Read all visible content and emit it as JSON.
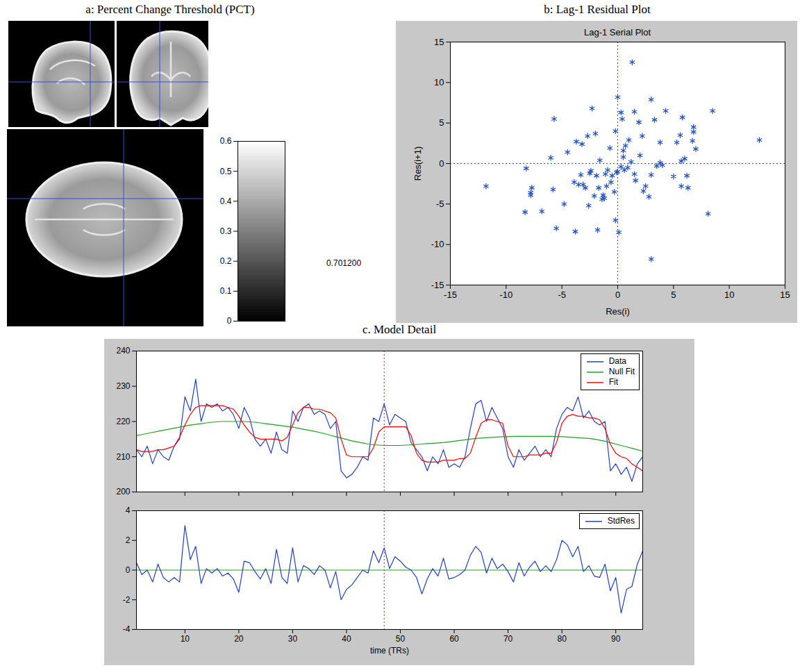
{
  "chart_data": [
    {
      "type": "image",
      "title": "a: Percent Change Threshold (PCT)",
      "colorbar": {
        "range": [
          0,
          0.6
        ],
        "ticks": [
          0,
          0.1,
          0.2,
          0.3,
          0.4,
          0.5,
          0.6
        ],
        "colors": [
          "#000000",
          "#ffffff"
        ]
      },
      "annotations": [
        "0.701200"
      ]
    },
    {
      "type": "scatter",
      "title": "b: Lag-1 Residual Plot",
      "subtitle": "Lag-1 Serial Plot",
      "x_label": "Res(i)",
      "y_label": "Res(i+1)",
      "x": [
        -11.8,
        -8.2,
        -8.3,
        -7.8,
        -7.7,
        -7.8,
        -6.8,
        -6,
        -5.7,
        -5.8,
        -5.5,
        -4.8,
        -4.5,
        -3.8,
        -3.7,
        -3.9,
        -3.5,
        -3.3,
        -3.1,
        -3.2,
        -2.9,
        -2.7,
        -2.5,
        -2.3,
        -2.4,
        -2,
        -2.1,
        -1.9,
        -1.8,
        -1.7,
        -1.6,
        -1.4,
        -1.3,
        -1.2,
        -1.1,
        -1,
        -0.9,
        -0.7,
        -0.6,
        -0.5,
        -0.3,
        -0.2,
        -0.1,
        -0.2,
        0,
        0.1,
        0,
        0.3,
        0.3,
        0.4,
        0.5,
        0.6,
        0.7,
        0.9,
        1,
        1.2,
        1.3,
        1.5,
        1.5,
        1.6,
        1.9,
        2,
        2.2,
        2.3,
        2.5,
        2.8,
        3,
        3,
        3,
        3.3,
        3.5,
        3.8,
        3.8,
        4,
        4.3,
        5.3,
        5.6,
        5.7,
        5.7,
        5.8,
        6,
        6.2,
        6.3,
        6.7,
        6.8,
        6.8,
        7,
        8.1,
        8.5,
        12.7,
        5,
        -2.6,
        0.5
      ],
      "values": [
        -2.8,
        -0.6,
        -6,
        -3.6,
        -3,
        -3.9,
        -5.9,
        0.7,
        5.5,
        -3.2,
        -8,
        -5,
        1.4,
        -8.4,
        2.7,
        -2.3,
        -2.6,
        -1.4,
        -2.6,
        2.4,
        -3,
        3.4,
        -1.2,
        6.8,
        -0.9,
        3.7,
        -4,
        -1.5,
        -8.2,
        -3,
        0.4,
        -4.4,
        -3.9,
        -4.3,
        -1.3,
        -2.8,
        -0.8,
        1.9,
        -2.3,
        -1.5,
        -3.5,
        4,
        -1.1,
        -7,
        -1,
        -8.5,
        8.2,
        6.3,
        -0.4,
        5.5,
        0.8,
        -0.8,
        2.2,
        -0.5,
        2.9,
        0.2,
        12.5,
        6.4,
        -1.3,
        -2.1,
        5.1,
        1,
        3.4,
        -3.4,
        -2.8,
        -4.1,
        7.9,
        -1.4,
        -11.8,
        5.4,
        -0.3,
        2.6,
        0.1,
        -0.2,
        6.5,
        2.6,
        3.5,
        -2.8,
        0.3,
        5.7,
        0.6,
        -1.5,
        -3,
        2.8,
        3.9,
        4.5,
        1.8,
        -6.2,
        6.5,
        2.9,
        -1.6,
        -5.2,
        1.6
      ],
      "color": "#2050c0",
      "marker": "asterisk",
      "xlim": [
        -15,
        15
      ],
      "xticks": [
        -15,
        -10,
        -5,
        0,
        5,
        10,
        15
      ],
      "ylim": [
        -15,
        15
      ],
      "yticks": [
        -15,
        -10,
        -5,
        0,
        5,
        10,
        15
      ],
      "reference_lines": [
        {
          "x": 0,
          "color": "#ff0000",
          "line_style": "dotted"
        },
        {
          "y": 0,
          "color": "#ff0000",
          "line_style": "dotted"
        }
      ]
    },
    {
      "type": "line",
      "title": "c. Model Detail",
      "x": [
        1,
        2,
        3,
        4,
        5,
        6,
        7,
        8,
        9,
        10,
        11,
        12,
        13,
        14,
        15,
        16,
        17,
        18,
        19,
        20,
        21,
        22,
        23,
        24,
        25,
        26,
        27,
        28,
        29,
        30,
        31,
        32,
        33,
        34,
        35,
        36,
        37,
        38,
        39,
        40,
        41,
        42,
        43,
        44,
        45,
        46,
        47,
        48,
        49,
        50,
        51,
        52,
        53,
        54,
        55,
        56,
        57,
        58,
        59,
        60,
        61,
        62,
        63,
        64,
        65,
        66,
        67,
        68,
        69,
        70,
        71,
        72,
        73,
        74,
        75,
        76,
        77,
        78,
        79,
        80,
        81,
        82,
        83,
        84,
        85,
        86,
        87,
        88,
        89,
        90,
        91,
        92,
        93,
        94,
        95
      ],
      "series": [
        {
          "name": "Data",
          "color": "#2040c0",
          "values": [
            212,
            210,
            213,
            208,
            212,
            210,
            209,
            213,
            215,
            227,
            223,
            232,
            220,
            225,
            224,
            225,
            223,
            224,
            222,
            218,
            224,
            221,
            215,
            213,
            215,
            211,
            217,
            212,
            211,
            223,
            220,
            224,
            225,
            222,
            223,
            222,
            218,
            220,
            206,
            204,
            205,
            207,
            210,
            209,
            221,
            220,
            225,
            219,
            222,
            221,
            220,
            214,
            212,
            210,
            206,
            210,
            208,
            212,
            207,
            208,
            207,
            210,
            218,
            225,
            226,
            220,
            224,
            221,
            218,
            210,
            207,
            212,
            209,
            211,
            213,
            210,
            212,
            210,
            218,
            222,
            224,
            223,
            227,
            221,
            223,
            220,
            219,
            220,
            206,
            208,
            205,
            207,
            203,
            208,
            210
          ]
        },
        {
          "name": "Null Fit",
          "color": "#20a020",
          "values": [
            216,
            216.3,
            216.6,
            216.9,
            217.2,
            217.5,
            217.8,
            218.1,
            218.4,
            218.7,
            219,
            219.2,
            219.4,
            219.6,
            219.8,
            219.9,
            220,
            220,
            220,
            220,
            220,
            219.9,
            219.8,
            219.6,
            219.4,
            219.2,
            219,
            218.8,
            218.6,
            218.4,
            218.1,
            217.8,
            217.5,
            217.2,
            216.9,
            216.5,
            216.1,
            215.7,
            215.3,
            214.9,
            214.5,
            214.2,
            213.9,
            213.6,
            213.4,
            213.3,
            213.2,
            213.2,
            213.2,
            213.2,
            213.3,
            213.4,
            213.5,
            213.6,
            213.7,
            213.8,
            213.9,
            214,
            214.2,
            214.4,
            214.6,
            214.8,
            215,
            215.2,
            215.3,
            215.4,
            215.5,
            215.6,
            215.7,
            215.7,
            215.8,
            215.8,
            215.8,
            215.8,
            215.8,
            215.8,
            215.8,
            215.8,
            215.7,
            215.7,
            215.6,
            215.5,
            215.4,
            215.3,
            215.2,
            215,
            214.7,
            214.4,
            214,
            213.6,
            213.2,
            212.8,
            212.4,
            212,
            211.6
          ]
        },
        {
          "name": "Fit",
          "color": "#ff0000",
          "values": [
            212,
            211.5,
            211.5,
            211.5,
            212,
            212,
            212.5,
            213,
            215.5,
            219,
            222,
            224,
            224.5,
            224.5,
            224.5,
            224.5,
            224.5,
            224,
            223.5,
            221.5,
            219,
            217,
            215.5,
            215,
            215,
            215,
            215,
            214.5,
            215.5,
            219,
            222.5,
            224,
            224,
            223.5,
            223.5,
            223,
            222.5,
            221,
            215,
            210.5,
            210,
            210,
            210,
            210,
            212.5,
            217,
            218.5,
            218.5,
            218.5,
            218.5,
            218.5,
            216,
            211,
            209,
            208.5,
            208.5,
            208.5,
            209,
            209,
            209,
            209.5,
            209.5,
            211,
            215.5,
            219.5,
            220.5,
            220.5,
            220,
            219.5,
            213,
            210,
            210,
            210,
            210.5,
            210.5,
            210.5,
            211,
            211,
            214,
            219.5,
            221.5,
            222,
            221.5,
            221.5,
            221,
            221,
            220.5,
            218,
            213.5,
            211,
            210,
            209.5,
            208,
            207,
            206
          ]
        }
      ],
      "xlim": [
        1,
        95
      ],
      "xticks": [
        10,
        20,
        30,
        40,
        50,
        60,
        70,
        80,
        90
      ],
      "ylim": [
        200,
        240
      ],
      "yticks": [
        200,
        210,
        220,
        230,
        240
      ],
      "legend": "top-right",
      "tick_labels": "y",
      "reference_lines": [
        {
          "x": 47,
          "color": "#ff0000",
          "line_style": "dotted"
        }
      ]
    },
    {
      "type": "line",
      "x_label": "time (TRs)",
      "x": [
        1,
        2,
        3,
        4,
        5,
        6,
        7,
        8,
        9,
        10,
        11,
        12,
        13,
        14,
        15,
        16,
        17,
        18,
        19,
        20,
        21,
        22,
        23,
        24,
        25,
        26,
        27,
        28,
        29,
        30,
        31,
        32,
        33,
        34,
        35,
        36,
        37,
        38,
        39,
        40,
        41,
        42,
        43,
        44,
        45,
        46,
        47,
        48,
        49,
        50,
        51,
        52,
        53,
        54,
        55,
        56,
        57,
        58,
        59,
        60,
        61,
        62,
        63,
        64,
        65,
        66,
        67,
        68,
        69,
        70,
        71,
        72,
        73,
        74,
        75,
        76,
        77,
        78,
        79,
        80,
        81,
        82,
        83,
        84,
        85,
        86,
        87,
        88,
        89,
        90,
        91,
        92,
        93,
        94,
        95
      ],
      "series": [
        {
          "name": "StdRes",
          "color": "#2040c0",
          "values": [
            0.5,
            -0.3,
            0,
            -0.8,
            0.4,
            -0.5,
            -0.8,
            -0.5,
            -0.8,
            3,
            0.7,
            1.6,
            -0.9,
            0.1,
            -0.2,
            0.1,
            -0.4,
            -0.2,
            -0.6,
            -1.5,
            0.6,
            0.5,
            -0.1,
            -0.6,
            0.1,
            -0.9,
            1.4,
            -0.5,
            -0.9,
            1.5,
            -0.8,
            0.3,
            0.1,
            -0.3,
            0.3,
            0,
            -1.2,
            -0.1,
            -2,
            -1.3,
            -1,
            -0.5,
            0,
            -0.2,
            1.3,
            0.5,
            1.5,
            0.1,
            0.9,
            0.6,
            0.2,
            0,
            -0.5,
            -1.6,
            -0.6,
            0.1,
            -0.4,
            0.8,
            -0.6,
            -0.5,
            -0.3,
            0,
            1,
            1.6,
            1.2,
            -0.2,
            0.8,
            0.1,
            0.4,
            -0.1,
            -0.8,
            0.5,
            -0.4,
            0.2,
            0.6,
            -0.1,
            0.3,
            -0.1,
            0.7,
            2,
            1.7,
            0.9,
            1.6,
            -0.1,
            0.3,
            -0.4,
            -0.5,
            0.4,
            -1.4,
            -0.5,
            -2.9,
            -1.3,
            -1.1,
            0.4,
            1.3
          ]
        }
      ],
      "xlim": [
        1,
        95
      ],
      "xticks": [
        10,
        20,
        30,
        40,
        50,
        60,
        70,
        80,
        90
      ],
      "ylim": [
        -4,
        4
      ],
      "yticks": [
        -4,
        -2,
        0,
        2,
        4
      ],
      "legend": "top-right",
      "reference_lines": [
        {
          "x": 47,
          "color": "#ff0000",
          "line_style": "dotted"
        },
        {
          "y": 0,
          "color": "#20a020",
          "line_style": "solid"
        }
      ]
    }
  ]
}
